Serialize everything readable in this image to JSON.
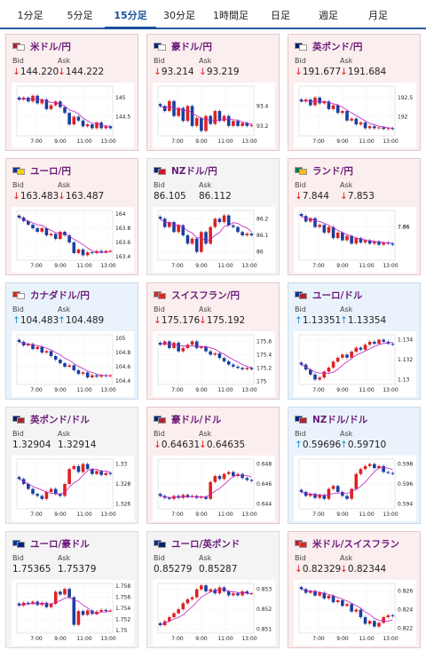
{
  "tabs": [
    {
      "label": "1分足",
      "active": false
    },
    {
      "label": "5分足",
      "active": false
    },
    {
      "label": "15分足",
      "active": true
    },
    {
      "label": "30分足",
      "active": false
    },
    {
      "label": "1時間足",
      "active": false
    },
    {
      "label": "日足",
      "active": false
    },
    {
      "label": "週足",
      "active": false
    },
    {
      "label": "月足",
      "active": false
    }
  ],
  "labels": {
    "bid": "Bid",
    "ask": "Ask",
    "down_arrow": "↓",
    "up_arrow": "↑"
  },
  "cards": [
    {
      "pair": "米ドル/円",
      "bid": "144.220",
      "ask": "144.222",
      "trend": "down",
      "flag_a": "#b22234",
      "flag_b": "#ffffff",
      "chart_data": {
        "type": "candlestick",
        "x_ticks": [
          "7:00",
          "9:00",
          "11:00",
          "13:00"
        ],
        "y_ticks": [
          "145",
          "144.5"
        ],
        "ylim": [
          144.0,
          145.3
        ],
        "close": [
          144.95,
          145.0,
          144.9,
          145.05,
          144.85,
          144.95,
          144.7,
          144.8,
          144.9,
          144.75,
          144.6,
          144.3,
          144.5,
          144.4,
          144.25,
          144.3,
          144.2,
          144.35,
          144.2,
          144.25,
          144.2
        ]
      }
    },
    {
      "pair": "豪ドル/円",
      "bid": "93.214",
      "ask": "93.219",
      "trend": "down",
      "flag_a": "#00247d",
      "flag_b": "#ffffff",
      "chart_data": {
        "type": "candlestick",
        "x_ticks": [
          "7:00",
          "9:00",
          "11:00",
          "13:00"
        ],
        "y_ticks": [
          "93.4",
          "93.2"
        ],
        "ylim": [
          93.1,
          93.6
        ],
        "close": [
          93.4,
          93.35,
          93.45,
          93.3,
          93.38,
          93.25,
          93.4,
          93.2,
          93.28,
          93.15,
          93.3,
          93.22,
          93.35,
          93.25,
          93.3,
          93.2,
          93.25,
          93.2,
          93.23,
          93.2,
          93.21
        ]
      }
    },
    {
      "pair": "英ポンド/円",
      "bid": "191.677",
      "ask": "191.684",
      "trend": "down",
      "flag_a": "#012169",
      "flag_b": "#ffffff",
      "chart_data": {
        "type": "candlestick",
        "x_ticks": [
          "7:00",
          "9:00",
          "11:00",
          "13:00"
        ],
        "y_ticks": [
          "192.5",
          "192"
        ],
        "ylim": [
          191.5,
          192.8
        ],
        "close": [
          192.4,
          192.45,
          192.3,
          192.5,
          192.35,
          192.4,
          192.2,
          192.3,
          192.1,
          192.15,
          191.9,
          191.95,
          191.8,
          191.85,
          191.7,
          191.75,
          191.7,
          191.72,
          191.68,
          191.7,
          191.68
        ]
      }
    },
    {
      "pair": "ユーロ/円",
      "bid": "163.483",
      "ask": "163.487",
      "trend": "down",
      "flag_a": "#003399",
      "flag_b": "#ffcc00",
      "chart_data": {
        "type": "candlestick",
        "x_ticks": [
          "7:00",
          "9:00",
          "11:00",
          "13:00"
        ],
        "y_ticks": [
          "164",
          "163.8",
          "163.6",
          "163.4"
        ],
        "ylim": [
          163.35,
          164.05
        ],
        "close": [
          163.95,
          163.9,
          163.85,
          163.8,
          163.75,
          163.8,
          163.7,
          163.72,
          163.65,
          163.75,
          163.7,
          163.6,
          163.45,
          163.5,
          163.42,
          163.46,
          163.45,
          163.48,
          163.46,
          163.48,
          163.48
        ]
      }
    },
    {
      "pair": "NZドル/円",
      "bid": "86.105",
      "ask": "86.112",
      "trend": "neutral",
      "flag_a": "#00247d",
      "flag_b": "#cc142b",
      "chart_data": {
        "type": "candlestick",
        "x_ticks": [
          "7:00",
          "9:00",
          "11:00",
          "13:00"
        ],
        "y_ticks": [
          "86.2",
          "86.1",
          "86"
        ],
        "ylim": [
          85.95,
          86.25
        ],
        "close": [
          86.2,
          86.15,
          86.18,
          86.12,
          86.16,
          86.1,
          86.05,
          86.08,
          86.0,
          86.12,
          86.05,
          86.15,
          86.2,
          86.18,
          86.22,
          86.16,
          86.15,
          86.12,
          86.1,
          86.11,
          86.1
        ]
      }
    },
    {
      "pair": "ランド/円",
      "bid": "7.844",
      "ask": "7.853",
      "trend": "down",
      "flag_a": "#007a4d",
      "flag_b": "#ffb612",
      "chart_data": {
        "type": "candlestick",
        "x_ticks": [
          "7:00",
          "9:00",
          "11:00",
          "13:00"
        ],
        "y_ticks": [
          "7.86",
          "7.86"
        ],
        "ylim": [
          7.83,
          7.875
        ],
        "close": [
          7.87,
          7.865,
          7.868,
          7.86,
          7.862,
          7.855,
          7.86,
          7.85,
          7.855,
          7.848,
          7.852,
          7.845,
          7.85,
          7.846,
          7.848,
          7.845,
          7.847,
          7.844,
          7.846,
          7.845,
          7.844
        ]
      }
    },
    {
      "pair": "カナダドル/円",
      "bid": "104.483",
      "ask": "104.489",
      "trend": "up",
      "flag_a": "#d52b1e",
      "flag_b": "#ffffff",
      "chart_data": {
        "type": "candlestick",
        "x_ticks": [
          "7:00",
          "9:00",
          "11:00",
          "13:00"
        ],
        "y_ticks": [
          "105",
          "104.8",
          "104.6",
          "104.4"
        ],
        "ylim": [
          104.35,
          105.05
        ],
        "close": [
          104.95,
          104.9,
          104.92,
          104.85,
          104.88,
          104.8,
          104.82,
          104.75,
          104.7,
          104.65,
          104.6,
          104.62,
          104.55,
          104.5,
          104.52,
          104.45,
          104.48,
          104.46,
          104.48,
          104.47,
          104.48
        ]
      }
    },
    {
      "pair": "スイスフラン/円",
      "bid": "175.176",
      "ask": "175.192",
      "trend": "down",
      "flag_a": "#d52b1e",
      "flag_b": "#d52b1e",
      "chart_data": {
        "type": "candlestick",
        "x_ticks": [
          "7:00",
          "9:00",
          "11:00",
          "13:00"
        ],
        "y_ticks": [
          "175.6",
          "175.4",
          "175.2",
          "175"
        ],
        "ylim": [
          174.95,
          175.7
        ],
        "close": [
          175.55,
          175.6,
          175.5,
          175.58,
          175.45,
          175.5,
          175.55,
          175.6,
          175.5,
          175.52,
          175.45,
          175.4,
          175.42,
          175.35,
          175.3,
          175.25,
          175.22,
          175.2,
          175.18,
          175.2,
          175.18
        ]
      }
    },
    {
      "pair": "ユーロ/ドル",
      "bid": "1.13351",
      "ask": "1.13354",
      "trend": "up",
      "flag_a": "#003399",
      "flag_b": "#b22234",
      "chart_data": {
        "type": "candlestick",
        "x_ticks": [
          "7:00",
          "9:00",
          "11:00",
          "13:00"
        ],
        "y_ticks": [
          "1.134",
          "1.132",
          "1.13"
        ],
        "ylim": [
          1.1295,
          1.1345
        ],
        "close": [
          1.1315,
          1.131,
          1.1305,
          1.13,
          1.1302,
          1.1308,
          1.1312,
          1.1318,
          1.1322,
          1.1325,
          1.1322,
          1.1328,
          1.1332,
          1.133,
          1.1335,
          1.1338,
          1.1336,
          1.134,
          1.1338,
          1.1336,
          1.1335
        ]
      }
    },
    {
      "pair": "英ポンド/ドル",
      "bid": "1.32904",
      "ask": "1.32914",
      "trend": "neutral",
      "flag_a": "#012169",
      "flag_b": "#b22234",
      "chart_data": {
        "type": "candlestick",
        "x_ticks": [
          "7:00",
          "9:00",
          "11:00",
          "13:00"
        ],
        "y_ticks": [
          "1.33",
          "1.328",
          "1.326"
        ],
        "ylim": [
          1.3255,
          1.3305
        ],
        "close": [
          1.3285,
          1.328,
          1.3275,
          1.327,
          1.3268,
          1.3265,
          1.3272,
          1.3275,
          1.327,
          1.3268,
          1.328,
          1.3295,
          1.3298,
          1.3292,
          1.33,
          1.3295,
          1.329,
          1.3293,
          1.3289,
          1.3291,
          1.329
        ]
      }
    },
    {
      "pair": "豪ドル/ドル",
      "bid": "0.64631",
      "ask": "0.64635",
      "trend": "down",
      "flag_a": "#00247d",
      "flag_b": "#b22234",
      "chart_data": {
        "type": "candlestick",
        "x_ticks": [
          "7:00",
          "9:00",
          "11:00",
          "13:00"
        ],
        "y_ticks": [
          "0.648",
          "0.646",
          "0.644"
        ],
        "ylim": [
          0.6435,
          0.6485
        ],
        "close": [
          0.6448,
          0.6446,
          0.6445,
          0.6448,
          0.6446,
          0.6449,
          0.6447,
          0.6448,
          0.6446,
          0.6447,
          0.6445,
          0.6462,
          0.6468,
          0.6465,
          0.647,
          0.6472,
          0.6468,
          0.647,
          0.6466,
          0.6464,
          0.6463
        ]
      }
    },
    {
      "pair": "NZドル/ドル",
      "bid": "0.59696",
      "ask": "0.59710",
      "trend": "up",
      "flag_a": "#00247d",
      "flag_b": "#b22234",
      "chart_data": {
        "type": "candlestick",
        "x_ticks": [
          "7:00",
          "9:00",
          "11:00",
          "13:00"
        ],
        "y_ticks": [
          "0.598",
          "0.596",
          "0.594"
        ],
        "ylim": [
          0.5935,
          0.5985
        ],
        "close": [
          0.5952,
          0.5948,
          0.595,
          0.5946,
          0.5949,
          0.5945,
          0.5955,
          0.5958,
          0.5952,
          0.5948,
          0.5945,
          0.5955,
          0.597,
          0.5975,
          0.5978,
          0.598,
          0.5976,
          0.5978,
          0.5972,
          0.5971,
          0.597
        ]
      }
    },
    {
      "pair": "ユーロ/豪ドル",
      "bid": "1.75365",
      "ask": "1.75379",
      "trend": "neutral",
      "flag_a": "#003399",
      "flag_b": "#00247d",
      "chart_data": {
        "type": "candlestick",
        "x_ticks": [
          "7:00",
          "9:00",
          "11:00",
          "13:00"
        ],
        "y_ticks": [
          "1.758",
          "1.756",
          "1.754",
          "1.752",
          "1.75"
        ],
        "ylim": [
          1.7495,
          1.7585
        ],
        "close": [
          1.7545,
          1.755,
          1.7548,
          1.7552,
          1.7546,
          1.755,
          1.7542,
          1.7548,
          1.757,
          1.7565,
          1.7575,
          1.756,
          1.751,
          1.7535,
          1.7528,
          1.7536,
          1.753,
          1.7534,
          1.7537,
          1.7535,
          1.7536
        ]
      }
    },
    {
      "pair": "ユーロ/英ポンド",
      "bid": "0.85279",
      "ask": "0.85287",
      "trend": "neutral",
      "flag_a": "#003399",
      "flag_b": "#012169",
      "chart_data": {
        "type": "candlestick",
        "x_ticks": [
          "7:00",
          "9:00",
          "11:00",
          "13:00"
        ],
        "y_ticks": [
          "0.853",
          "0.852",
          "0.851"
        ],
        "ylim": [
          0.8508,
          0.8533
        ],
        "close": [
          0.8512,
          0.8514,
          0.8516,
          0.8518,
          0.852,
          0.8523,
          0.8525,
          0.8526,
          0.853,
          0.8532,
          0.8529,
          0.853,
          0.8528,
          0.8531,
          0.8529,
          0.8527,
          0.8528,
          0.8527,
          0.8529,
          0.8528,
          0.8528
        ]
      }
    },
    {
      "pair": "米ドル/スイスフラン",
      "bid": "0.82329",
      "ask": "0.82344",
      "trend": "down",
      "flag_a": "#b22234",
      "flag_b": "#d52b1e",
      "chart_data": {
        "type": "candlestick",
        "x_ticks": [
          "7:00",
          "9:00",
          "11:00",
          "13:00"
        ],
        "y_ticks": [
          "0.826",
          "0.824",
          "0.822"
        ],
        "ylim": [
          0.8215,
          0.8268
        ],
        "close": [
          0.8262,
          0.8258,
          0.826,
          0.8255,
          0.8258,
          0.8252,
          0.8255,
          0.8248,
          0.825,
          0.8244,
          0.8246,
          0.8238,
          0.824,
          0.8232,
          0.8225,
          0.8228,
          0.8222,
          0.8226,
          0.8232,
          0.8234,
          0.8233
        ]
      }
    }
  ]
}
